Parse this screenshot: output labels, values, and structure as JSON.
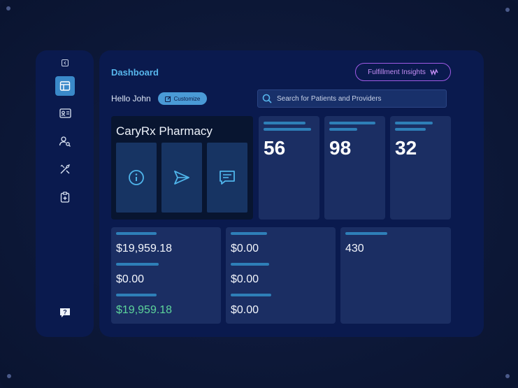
{
  "sidebar": {
    "icons": [
      "collapse-icon",
      "dashboard-icon",
      "id-card-icon",
      "user-search-icon",
      "tools-icon",
      "clipboard-icon",
      "help-icon"
    ]
  },
  "header": {
    "title": "Dashboard",
    "insights_label": "Fulfillment Insights"
  },
  "greeting": "Hello John",
  "customize_label": "Customize",
  "search": {
    "placeholder": "Search for Patients and Providers"
  },
  "pharmacy": {
    "name": "CaryRx Pharmacy",
    "actions": [
      "info-icon",
      "send-icon",
      "message-icon"
    ]
  },
  "stats": [
    "56",
    "98",
    "32"
  ],
  "finance": {
    "col1": [
      "$19,959.18",
      "$0.00",
      "$19,959.18"
    ],
    "col2": [
      "$0.00",
      "$0.00",
      "$0.00"
    ],
    "col3": [
      "430"
    ]
  },
  "colors": {
    "accent": "#57b6ec",
    "insights": "#a05ae6",
    "positive": "#5dd59b",
    "panel": "#0a1a4e",
    "card": "#1b2e63"
  }
}
